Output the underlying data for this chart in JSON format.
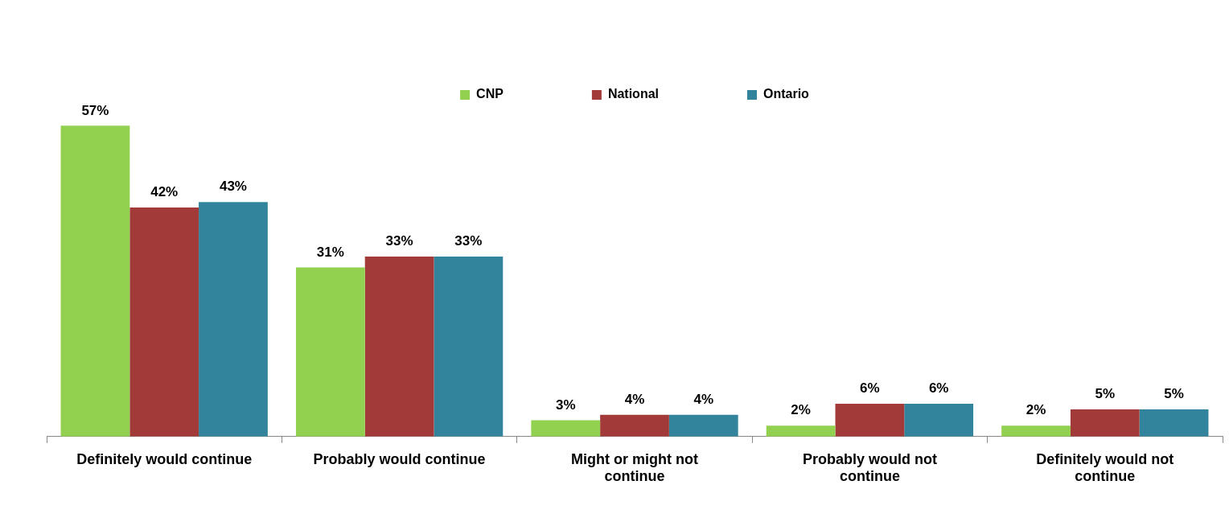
{
  "chart_data": {
    "type": "bar",
    "categories": [
      "Definitely would continue",
      "Probably would continue",
      "Might or might not continue",
      "Probably would not continue",
      "Definitely would not continue"
    ],
    "series": [
      {
        "name": "CNP",
        "color": "#92d050",
        "values": [
          57,
          31,
          3,
          2,
          2
        ],
        "value_labels": [
          "57%",
          "31%",
          "3%",
          "2%",
          "2%"
        ]
      },
      {
        "name": "National",
        "color": "#a33a3a",
        "values": [
          42,
          33,
          4,
          6,
          5
        ],
        "value_labels": [
          "42%",
          "33%",
          "4%",
          "6%",
          "5%"
        ]
      },
      {
        "name": "Ontario",
        "color": "#31849b",
        "values": [
          43,
          33,
          4,
          6,
          5
        ],
        "value_labels": [
          "43%",
          "33%",
          "4%",
          "6%",
          "5%"
        ]
      }
    ],
    "tick_labels": "x",
    "legend": "top"
  }
}
